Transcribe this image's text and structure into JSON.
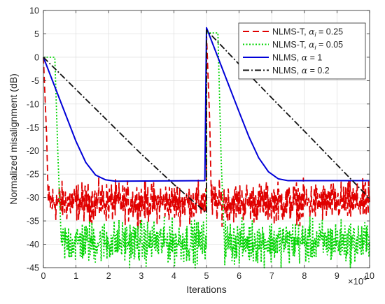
{
  "chart_data": {
    "type": "line",
    "xlabel": "Iterations",
    "ylabel": "Normalized misalignment (dB)",
    "x_multiplier_label": "×10",
    "x_multiplier_exp": "4",
    "xlim": [
      0,
      10
    ],
    "ylim": [
      -45,
      10
    ],
    "x_ticks": [
      0,
      1,
      2,
      3,
      4,
      5,
      6,
      7,
      8,
      9,
      10
    ],
    "y_ticks": [
      10,
      5,
      0,
      -5,
      -10,
      -15,
      -20,
      -25,
      -30,
      -35,
      -40,
      -45
    ],
    "grid": true,
    "legend_position": "top-right",
    "series": [
      {
        "name": "NLMS-T, α_i = 0.25",
        "legend_main": "NLMS-T, ",
        "legend_alpha": "α",
        "legend_sub": "i",
        "legend_eq": " = 0.25",
        "color": "#e00000",
        "style": "dashed",
        "noise_mean": -31,
        "noise_amp": 3.2,
        "points": [
          [
            0,
            0
          ],
          [
            0.1,
            -17
          ],
          [
            0.15,
            -31
          ],
          [
            5.0,
            -31
          ],
          [
            5.0,
            5
          ],
          [
            5.1,
            -14
          ],
          [
            5.15,
            -31
          ],
          [
            10,
            -31
          ]
        ]
      },
      {
        "name": "NLMS-T, α_i = 0.05",
        "legend_main": "NLMS-T, ",
        "legend_alpha": "α",
        "legend_sub": "i",
        "legend_eq": " = 0.05",
        "color": "#00d400",
        "style": "dotted",
        "noise_mean": -39.5,
        "noise_amp": 3.5,
        "points": [
          [
            0,
            0
          ],
          [
            0.35,
            0
          ],
          [
            0.45,
            -22
          ],
          [
            0.55,
            -39.5
          ],
          [
            5.0,
            -39.5
          ],
          [
            5.0,
            5.2
          ],
          [
            5.35,
            5.2
          ],
          [
            5.45,
            -22
          ],
          [
            5.55,
            -39.5
          ],
          [
            10,
            -39.5
          ]
        ]
      },
      {
        "name": "NLMS, α = 1",
        "legend_main": "NLMS, ",
        "legend_alpha": "α",
        "legend_sub": "",
        "legend_eq": " = 1",
        "color": "#0000d8",
        "style": "solid",
        "points": [
          [
            0,
            0
          ],
          [
            0.5,
            -9
          ],
          [
            1.0,
            -18
          ],
          [
            1.3,
            -22.5
          ],
          [
            1.6,
            -25.2
          ],
          [
            1.9,
            -26.2
          ],
          [
            2.2,
            -26.5
          ],
          [
            4.95,
            -26.4
          ],
          [
            5.0,
            6.3
          ],
          [
            5.5,
            -2.7
          ],
          [
            6.0,
            -11.7
          ],
          [
            6.3,
            -17
          ],
          [
            6.6,
            -21.5
          ],
          [
            6.9,
            -24.5
          ],
          [
            7.2,
            -26
          ],
          [
            7.5,
            -26.4
          ],
          [
            10,
            -26.4
          ]
        ]
      },
      {
        "name": "NLMS, α = 0.2",
        "legend_main": "NLMS, ",
        "legend_alpha": "α",
        "legend_sub": "",
        "legend_eq": " = 0.2",
        "color": "#111111",
        "style": "dashdot",
        "points": [
          [
            0,
            0
          ],
          [
            1,
            -6.9
          ],
          [
            2,
            -13.8
          ],
          [
            3,
            -20.7
          ],
          [
            4,
            -27.2
          ],
          [
            5.0,
            -33.3
          ],
          [
            5.0,
            5.8
          ],
          [
            6,
            -1.5
          ],
          [
            7,
            -8.7
          ],
          [
            8,
            -15.8
          ],
          [
            9,
            -23.0
          ],
          [
            10,
            -30.2
          ]
        ]
      }
    ]
  }
}
